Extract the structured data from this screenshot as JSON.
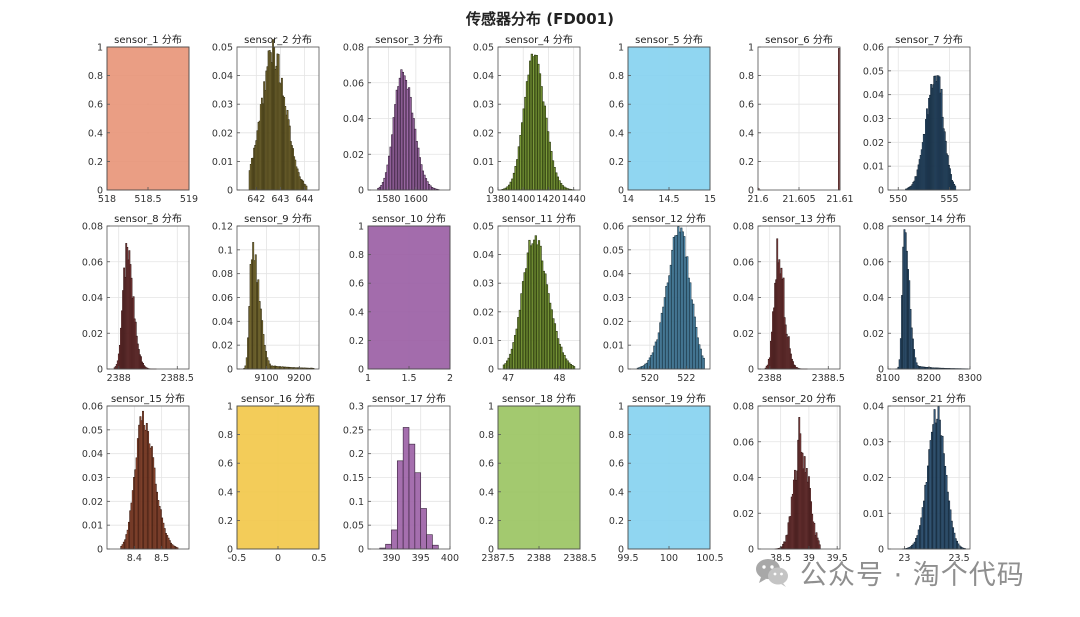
{
  "figure_title": "传感器分布 (FD001)",
  "watermark": "公众号 · 淘个代码",
  "chart_data": [
    {
      "type": "bar",
      "title": "sensor_1 分布",
      "color": "#e8967a",
      "xlim": [
        518,
        519
      ],
      "ylim": [
        0,
        1
      ],
      "xticks": [
        518,
        518.5,
        519
      ],
      "yticks": [
        0,
        0.2,
        0.4,
        0.6,
        0.8,
        1
      ],
      "bars": [
        {
          "x0": 518.67,
          "x1": 518.67,
          "value": 1
        }
      ],
      "fill_full": true
    },
    {
      "type": "bar",
      "title": "sensor_2 分布",
      "color": "#8b7a2f",
      "xlim": [
        641.2,
        644.6
      ],
      "ylim": [
        0,
        0.05
      ],
      "xticks": [
        642,
        643,
        644
      ],
      "yticks": [
        0,
        0.01,
        0.02,
        0.03,
        0.04,
        0.05
      ],
      "dist": {
        "mu": 642.7,
        "sl": 0.5,
        "sr": 0.52,
        "peak": 0.048,
        "lo": 641.7,
        "hi": 644.1,
        "n": 52,
        "jitter": 0.12
      }
    },
    {
      "type": "bar",
      "title": "sensor_3 分布",
      "color": "#9b5fa5",
      "xlim": [
        1565,
        1625
      ],
      "ylim": [
        0,
        0.08
      ],
      "xticks": [
        1580,
        1600
      ],
      "yticks": [
        0,
        0.02,
        0.04,
        0.06,
        0.08
      ],
      "dist": {
        "mu": 1590,
        "sl": 6,
        "sr": 8,
        "peak": 0.067,
        "lo": 1572,
        "hi": 1617,
        "n": 40,
        "jitter": 0.05
      }
    },
    {
      "type": "bar",
      "title": "sensor_4 分布",
      "color": "#6b8e23",
      "xlim": [
        1380,
        1445
      ],
      "ylim": [
        0,
        0.05
      ],
      "xticks": [
        1380,
        1400,
        1420,
        1440
      ],
      "yticks": [
        0,
        0.01,
        0.02,
        0.03,
        0.04,
        0.05
      ],
      "dist": {
        "mu": 1408,
        "sl": 7.5,
        "sr": 9,
        "peak": 0.047,
        "lo": 1383,
        "hi": 1441,
        "n": 45,
        "jitter": 0.05
      }
    },
    {
      "type": "bar",
      "title": "sensor_5 分布",
      "color": "#87d3f0",
      "xlim": [
        14,
        15
      ],
      "ylim": [
        0,
        1
      ],
      "xticks": [
        14,
        14.5,
        15
      ],
      "yticks": [
        0,
        0.2,
        0.4,
        0.6,
        0.8,
        1
      ],
      "bars": [
        {
          "x0": 14.62,
          "x1": 14.62,
          "value": 1
        }
      ],
      "fill_full": true
    },
    {
      "type": "bar",
      "title": "sensor_6 分布",
      "color": "#8b3a3a",
      "xlim": [
        21.6,
        21.61
      ],
      "ylim": [
        0,
        1
      ],
      "xticks": [
        21.6,
        21.605,
        21.61
      ],
      "yticks": [
        0,
        0.2,
        0.4,
        0.6,
        0.8,
        1
      ],
      "bars": [
        {
          "x0": 21.6,
          "x1": 21.6001,
          "value": 0.01
        },
        {
          "x0": 21.6098,
          "x1": 21.61,
          "value": 0.99
        }
      ]
    },
    {
      "type": "bar",
      "title": "sensor_7 分布",
      "color": "#2f5c85",
      "xlim": [
        549,
        557
      ],
      "ylim": [
        0,
        0.06
      ],
      "xticks": [
        550,
        555
      ],
      "yticks": [
        0,
        0.01,
        0.02,
        0.03,
        0.04,
        0.05,
        0.06
      ],
      "dist": {
        "mu": 553.7,
        "sl": 0.95,
        "sr": 0.7,
        "peak": 0.05,
        "lo": 550.7,
        "hi": 555.6,
        "n": 48,
        "jitter": 0.12
      }
    },
    {
      "type": "bar",
      "title": "sensor_8 分布",
      "color": "#8b3a3a",
      "xlim": [
        2387.9,
        2388.6
      ],
      "ylim": [
        0,
        0.08
      ],
      "xticks": [
        2388,
        2388.5
      ],
      "yticks": [
        0,
        0.02,
        0.04,
        0.06,
        0.08
      ],
      "dist": {
        "mu": 2388.07,
        "sl": 0.035,
        "sr": 0.055,
        "peak": 0.065,
        "lo": 2387.96,
        "hi": 2388.32,
        "n": 40,
        "jitter": 0.15
      }
    },
    {
      "type": "bar",
      "title": "sensor_9 分布",
      "color": "#8b7a2f",
      "xlim": [
        9010,
        9260
      ],
      "ylim": [
        0,
        0.12
      ],
      "xticks": [
        9100,
        9200
      ],
      "yticks": [
        0,
        0.02,
        0.04,
        0.06,
        0.08,
        0.1,
        0.12
      ],
      "dist": {
        "mu": 9055,
        "sl": 7,
        "sr": 22,
        "peak": 0.104,
        "lo": 9030,
        "hi": 9245,
        "n": 55,
        "jitter": 0.12,
        "tail": 0.05
      }
    },
    {
      "type": "bar",
      "title": "sensor_10 分布",
      "color": "#9b5fa5",
      "xlim": [
        1,
        2
      ],
      "ylim": [
        0,
        1
      ],
      "xticks": [
        1,
        1.5,
        2
      ],
      "yticks": [
        0,
        0.2,
        0.4,
        0.6,
        0.8,
        1
      ],
      "bars": [
        {
          "x0": 1.3,
          "x1": 1.3,
          "value": 1
        }
      ],
      "fill_full": true
    },
    {
      "type": "bar",
      "title": "sensor_11 分布",
      "color": "#6b8e23",
      "xlim": [
        46.8,
        48.4
      ],
      "ylim": [
        0,
        0.05
      ],
      "xticks": [
        47,
        48
      ],
      "yticks": [
        0,
        0.01,
        0.02,
        0.03,
        0.04,
        0.05
      ],
      "dist": {
        "mu": 47.5,
        "sl": 0.22,
        "sr": 0.28,
        "peak": 0.046,
        "lo": 46.9,
        "hi": 48.3,
        "n": 45,
        "jitter": 0.06
      }
    },
    {
      "type": "bar",
      "title": "sensor_12 分布",
      "color": "#4a90b8",
      "xlim": [
        518.8,
        523.3
      ],
      "ylim": [
        0,
        0.06
      ],
      "xticks": [
        520,
        522
      ],
      "yticks": [
        0,
        0.01,
        0.02,
        0.03,
        0.04,
        0.05,
        0.06
      ],
      "dist": {
        "mu": 521.7,
        "sl": 0.75,
        "sr": 0.55,
        "peak": 0.058,
        "lo": 519.3,
        "hi": 523,
        "n": 45,
        "jitter": 0.1
      }
    },
    {
      "type": "bar",
      "title": "sensor_13 分布",
      "color": "#8b3a3a",
      "xlim": [
        2387.9,
        2388.6
      ],
      "ylim": [
        0,
        0.08
      ],
      "xticks": [
        2388,
        2388.5
      ],
      "yticks": [
        0,
        0.02,
        0.04,
        0.06,
        0.08
      ],
      "dist": {
        "mu": 2388.07,
        "sl": 0.035,
        "sr": 0.055,
        "peak": 0.06,
        "lo": 2387.96,
        "hi": 2388.32,
        "n": 40,
        "jitter": 0.25
      }
    },
    {
      "type": "bar",
      "title": "sensor_14 分布",
      "color": "#2f5c85",
      "xlim": [
        8100,
        8300
      ],
      "ylim": [
        0,
        0.08
      ],
      "xticks": [
        8100,
        8200,
        8300
      ],
      "yticks": [
        0,
        0.02,
        0.04,
        0.06,
        0.08
      ],
      "dist": {
        "mu": 8140,
        "sl": 5,
        "sr": 12,
        "peak": 0.075,
        "lo": 8118,
        "hi": 8295,
        "n": 60,
        "jitter": 0.08,
        "tail": 0.04
      }
    },
    {
      "type": "bar",
      "title": "sensor_15 分布",
      "color": "#a0482a",
      "xlim": [
        8.3,
        8.6
      ],
      "ylim": [
        0,
        0.06
      ],
      "xticks": [
        8.4,
        8.5
      ],
      "yticks": [
        0,
        0.01,
        0.02,
        0.03,
        0.04,
        0.05,
        0.06
      ],
      "dist": {
        "mu": 8.43,
        "sl": 0.028,
        "sr": 0.042,
        "peak": 0.056,
        "lo": 8.35,
        "hi": 8.56,
        "n": 45,
        "jitter": 0.08
      }
    },
    {
      "type": "bar",
      "title": "sensor_16 分布",
      "color": "#f2c84b",
      "xlim": [
        -0.5,
        0.5
      ],
      "ylim": [
        0,
        1
      ],
      "xticks": [
        -0.5,
        0,
        0.5
      ],
      "yticks": [
        0,
        0.2,
        0.4,
        0.6,
        0.8,
        1
      ],
      "bars": [
        {
          "x0": 0.03,
          "x1": 0.03,
          "value": 1
        }
      ],
      "fill_full": true
    },
    {
      "type": "bar",
      "title": "sensor_17 分布",
      "color": "#9b5fa5",
      "xlim": [
        386,
        400
      ],
      "ylim": [
        0,
        0.3
      ],
      "xticks": [
        390,
        395,
        400
      ],
      "yticks": [
        0,
        0.05,
        0.1,
        0.15,
        0.2,
        0.25,
        0.3
      ],
      "bars": [
        {
          "x0": 388,
          "x1": 389,
          "value": 0.002
        },
        {
          "x0": 389,
          "x1": 390,
          "value": 0.01
        },
        {
          "x0": 390,
          "x1": 391,
          "value": 0.04
        },
        {
          "x0": 391,
          "x1": 392,
          "value": 0.185
        },
        {
          "x0": 392,
          "x1": 393,
          "value": 0.255
        },
        {
          "x0": 393,
          "x1": 394,
          "value": 0.22
        },
        {
          "x0": 394,
          "x1": 395,
          "value": 0.16
        },
        {
          "x0": 395,
          "x1": 396,
          "value": 0.085
        },
        {
          "x0": 396,
          "x1": 397,
          "value": 0.03
        },
        {
          "x0": 397,
          "x1": 398,
          "value": 0.008
        }
      ]
    },
    {
      "type": "bar",
      "title": "sensor_18 分布",
      "color": "#9bc463",
      "xlim": [
        2387.5,
        2388.5
      ],
      "ylim": [
        0,
        1
      ],
      "xticks": [
        2387.5,
        2388,
        2388.5
      ],
      "yticks": [
        0,
        0.2,
        0.4,
        0.6,
        0.8,
        1
      ],
      "bars": [
        {
          "x0": 2388,
          "x1": 2388,
          "value": 1
        }
      ],
      "fill_full": true
    },
    {
      "type": "bar",
      "title": "sensor_19 分布",
      "color": "#87d3f0",
      "xlim": [
        99.5,
        100.5
      ],
      "ylim": [
        0,
        1
      ],
      "xticks": [
        99.5,
        100,
        100.5
      ],
      "yticks": [
        0,
        0.2,
        0.4,
        0.6,
        0.8,
        1
      ],
      "bars": [
        {
          "x0": 100,
          "x1": 100,
          "value": 1
        }
      ],
      "fill_full": true
    },
    {
      "type": "bar",
      "title": "sensor_20 分布",
      "color": "#8b3a3a",
      "xlim": [
        38.1,
        39.55
      ],
      "ylim": [
        0,
        0.08
      ],
      "xticks": [
        38.5,
        39,
        39.5
      ],
      "yticks": [
        0,
        0.02,
        0.04,
        0.06,
        0.08
      ],
      "dist": {
        "mu": 38.85,
        "sl": 0.12,
        "sr": 0.14,
        "peak": 0.06,
        "lo": 38.4,
        "hi": 39.2,
        "n": 42,
        "jitter": 0.25
      }
    },
    {
      "type": "bar",
      "title": "sensor_21 分布",
      "color": "#2f5c85",
      "xlim": [
        22.85,
        23.6
      ],
      "ylim": [
        0,
        0.04
      ],
      "xticks": [
        23,
        23.5
      ],
      "yticks": [
        0,
        0.01,
        0.02,
        0.03,
        0.04
      ],
      "dist": {
        "mu": 23.3,
        "sl": 0.085,
        "sr": 0.075,
        "peak": 0.038,
        "lo": 22.98,
        "hi": 23.56,
        "n": 48,
        "jitter": 0.07
      }
    }
  ]
}
